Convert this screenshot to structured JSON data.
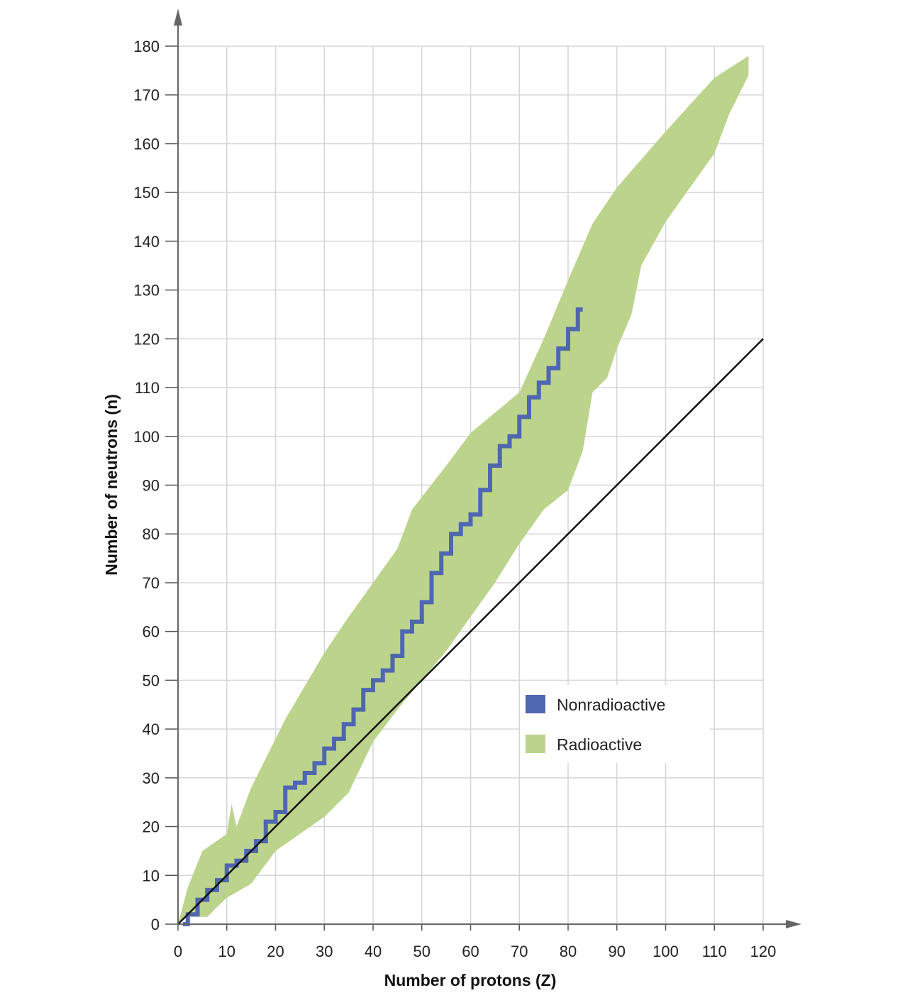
{
  "chart_data": {
    "type": "area",
    "title": "",
    "xlabel": "Number of protons (Z)",
    "ylabel": "Number of neutrons (n)",
    "xlim": [
      0,
      120
    ],
    "ylim": [
      0,
      180
    ],
    "xticks": [
      "0",
      "10",
      "20",
      "30",
      "40",
      "50",
      "60",
      "70",
      "80",
      "90",
      "100",
      "110",
      "120"
    ],
    "yticks": [
      "0",
      "10",
      "20",
      "30",
      "40",
      "50",
      "60",
      "70",
      "80",
      "90",
      "100",
      "110",
      "120",
      "130",
      "140",
      "150",
      "160",
      "170",
      "180"
    ],
    "grid": true,
    "legend_position": "lower-right",
    "series": [
      {
        "name": "Radioactive",
        "color": "#bcd38c",
        "upper": [
          [
            0,
            0
          ],
          [
            2,
            7.5
          ],
          [
            5,
            15
          ],
          [
            10,
            18.5
          ],
          [
            11,
            24.6
          ],
          [
            12,
            20
          ],
          [
            15,
            28
          ],
          [
            20,
            38
          ],
          [
            22,
            42
          ],
          [
            30,
            55.6
          ],
          [
            35,
            63
          ],
          [
            40,
            70
          ],
          [
            45,
            77
          ],
          [
            48,
            85
          ],
          [
            55,
            94
          ],
          [
            60,
            100.7
          ],
          [
            70,
            109
          ],
          [
            75,
            120
          ],
          [
            80,
            132
          ],
          [
            85,
            143.6
          ],
          [
            90,
            151
          ],
          [
            100,
            162.5
          ],
          [
            110,
            173.5
          ],
          [
            117,
            178
          ]
        ],
        "lower": [
          [
            117,
            174
          ],
          [
            113,
            166
          ],
          [
            110,
            158
          ],
          [
            105,
            151
          ],
          [
            100,
            144
          ],
          [
            95,
            135
          ],
          [
            93,
            125
          ],
          [
            90,
            118
          ],
          [
            88,
            112
          ],
          [
            85,
            109
          ],
          [
            83,
            97
          ],
          [
            80,
            89
          ],
          [
            75,
            85
          ],
          [
            70,
            78
          ],
          [
            65,
            70
          ],
          [
            60,
            63
          ],
          [
            55,
            56
          ],
          [
            50,
            50
          ],
          [
            45,
            44
          ],
          [
            40,
            37.4
          ],
          [
            35,
            27
          ],
          [
            30,
            22
          ],
          [
            25,
            18.5
          ],
          [
            20,
            15
          ],
          [
            15,
            8.3
          ],
          [
            10,
            5.4
          ],
          [
            8,
            3.5
          ],
          [
            6,
            1.5
          ],
          [
            2,
            1.5
          ],
          [
            0,
            0
          ]
        ]
      },
      {
        "name": "Nonradioactive",
        "color": "#4f66b0",
        "points": [
          [
            1,
            0
          ],
          [
            2,
            2
          ],
          [
            4,
            5
          ],
          [
            6,
            7
          ],
          [
            8,
            9
          ],
          [
            10,
            12
          ],
          [
            12,
            13
          ],
          [
            14,
            15
          ],
          [
            16,
            17
          ],
          [
            18,
            21
          ],
          [
            20,
            23
          ],
          [
            22,
            28
          ],
          [
            24,
            29
          ],
          [
            26,
            31
          ],
          [
            28,
            33
          ],
          [
            30,
            36
          ],
          [
            32,
            38
          ],
          [
            34,
            41
          ],
          [
            36,
            44
          ],
          [
            38,
            48
          ],
          [
            40,
            50
          ],
          [
            42,
            52
          ],
          [
            44,
            55
          ],
          [
            46,
            60
          ],
          [
            48,
            62
          ],
          [
            50,
            66
          ],
          [
            52,
            72
          ],
          [
            54,
            76
          ],
          [
            56,
            80
          ],
          [
            58,
            82
          ],
          [
            60,
            84
          ],
          [
            62,
            89
          ],
          [
            64,
            94
          ],
          [
            66,
            98
          ],
          [
            68,
            100
          ],
          [
            70,
            104
          ],
          [
            72,
            108
          ],
          [
            74,
            111
          ],
          [
            76,
            114
          ],
          [
            78,
            118
          ],
          [
            80,
            122
          ],
          [
            82,
            126
          ]
        ]
      },
      {
        "name": "",
        "color": "#111111",
        "line": [
          [
            0,
            0
          ],
          [
            120,
            120
          ]
        ]
      }
    ]
  }
}
